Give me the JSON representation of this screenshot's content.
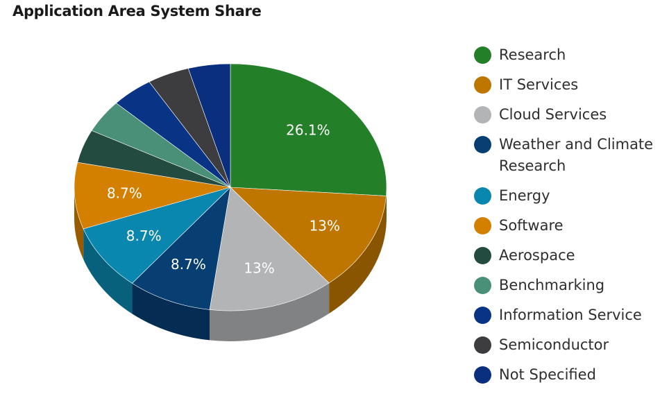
{
  "title": "Application Area System Share",
  "chart_data": {
    "type": "pie",
    "title": "Application Area System Share",
    "legend_position": "right",
    "slices": [
      {
        "label": "Research",
        "value": 26.1,
        "display": "26.1%",
        "color": "#238029"
      },
      {
        "label": "IT Services",
        "value": 13.0,
        "display": "13%",
        "color": "#bf7600"
      },
      {
        "label": "Cloud Services",
        "value": 13.0,
        "display": "13%",
        "color": "#b3b4b6"
      },
      {
        "label": "Weather and Climate Research",
        "value": 8.7,
        "display": "8.7%",
        "color": "#073f73"
      },
      {
        "label": "Energy",
        "value": 8.7,
        "display": "8.7%",
        "color": "#0a87ae"
      },
      {
        "label": "Software",
        "value": 8.7,
        "display": "8.7%",
        "color": "#d37f00"
      },
      {
        "label": "Aerospace",
        "value": 4.35,
        "display": "",
        "color": "#244b3f"
      },
      {
        "label": "Benchmarking",
        "value": 4.35,
        "display": "",
        "color": "#4a9079"
      },
      {
        "label": "Information Service",
        "value": 4.35,
        "display": "",
        "color": "#093385"
      },
      {
        "label": "Semiconductor",
        "value": 4.35,
        "display": "",
        "color": "#3d3d40"
      },
      {
        "label": "Not Specified",
        "value": 4.35,
        "display": "",
        "color": "#0a2f7f"
      }
    ]
  }
}
